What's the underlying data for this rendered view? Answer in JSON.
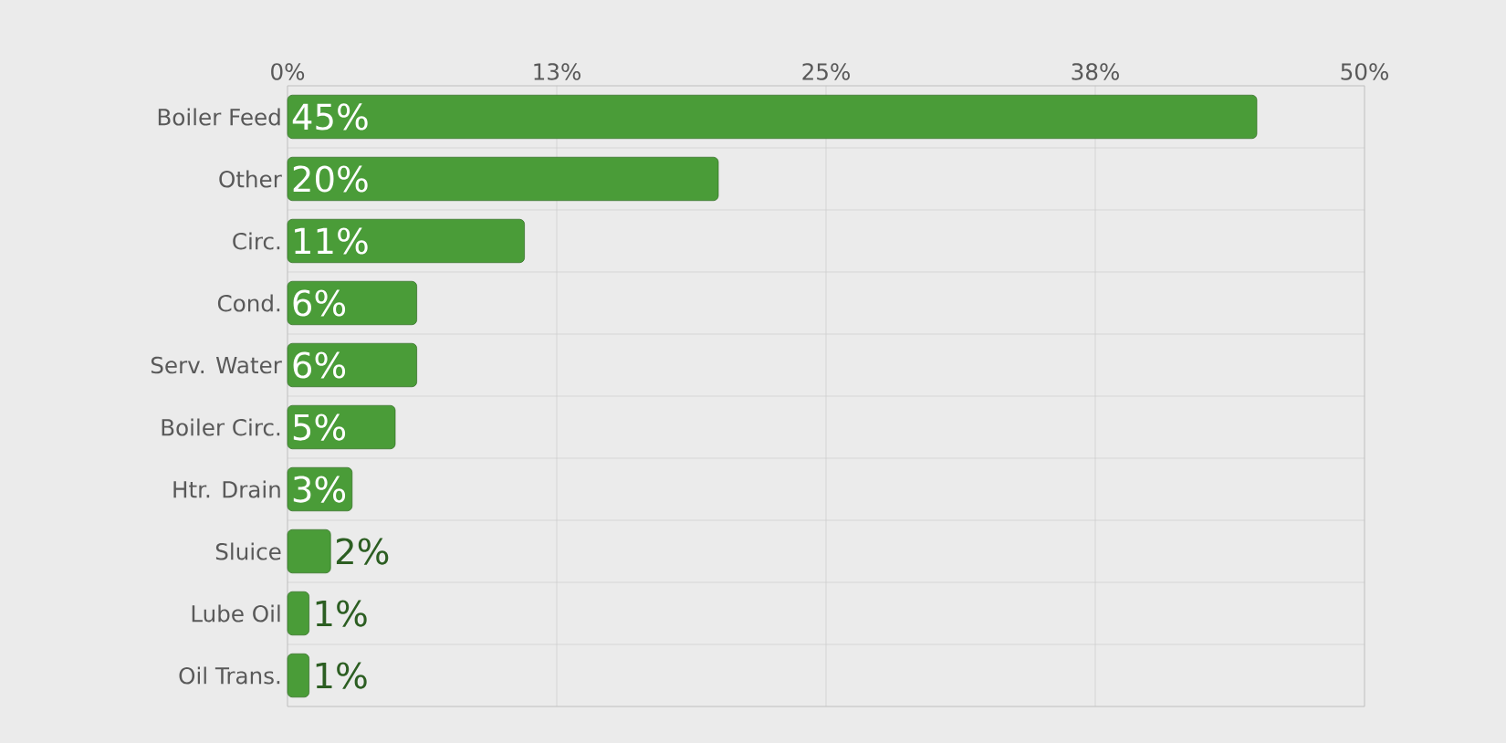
{
  "chart_data": {
    "type": "bar",
    "orientation": "horizontal",
    "categories": [
      "Boiler Feed",
      "Other",
      "Circ.",
      "Cond.",
      "Serv. Water",
      "Boiler Circ.",
      "Htr. Drain",
      "Sluice",
      "Lube Oil",
      "Oil Trans."
    ],
    "values": [
      45,
      20,
      11,
      6,
      6,
      5,
      3,
      2,
      1,
      1
    ],
    "value_labels": [
      "45%",
      "20%",
      "11%",
      "6%",
      "6%",
      "5%",
      "3%",
      "2%",
      "1%",
      "1%"
    ],
    "color": "#4a9c38",
    "xlim": [
      0,
      50
    ],
    "xticks": [
      {
        "value": 0,
        "label": "0%"
      },
      {
        "value": 12.5,
        "label": "13%"
      },
      {
        "value": 25,
        "label": "25%"
      },
      {
        "value": 37.5,
        "label": "38%"
      },
      {
        "value": 50,
        "label": "50%"
      }
    ],
    "grid": true
  }
}
